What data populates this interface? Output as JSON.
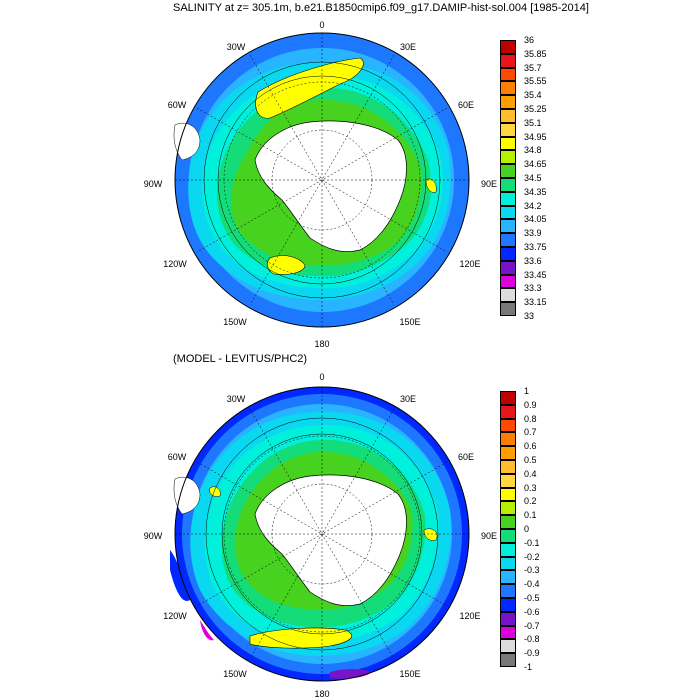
{
  "title": "SALINITY at z= 305.1m, b.e21.B1850cmip6.f09_g17.DAMIP-hist-sol.004 [1985-2014]",
  "subtitle": "(MODEL - LEVITUS/PHC2)",
  "map_labels": {
    "top": [
      "0",
      "30E",
      "60E",
      "90E",
      "120E",
      "150E",
      "180",
      "150W",
      "120W",
      "90W",
      "60W",
      "30W"
    ],
    "bottom": [
      "0",
      "30E",
      "60E",
      "90E",
      "120E",
      "150E",
      "180",
      "150W",
      "120W",
      "90W",
      "60W",
      "30W"
    ]
  },
  "colorbar_top": {
    "labels": [
      "36",
      "35.85",
      "35.7",
      "35.55",
      "35.4",
      "35.25",
      "35.1",
      "34.95",
      "34.8",
      "34.65",
      "34.5",
      "34.35",
      "34.2",
      "34.05",
      "33.9",
      "33.75",
      "33.6",
      "33.45",
      "33.3",
      "33.15",
      "33"
    ],
    "colors": [
      "#c00000",
      "#e8141c",
      "#ff4800",
      "#ff7d00",
      "#ff9e00",
      "#ffbc2c",
      "#ffd840",
      "#ffff00",
      "#b4f000",
      "#46d21e",
      "#14dc78",
      "#00f0dc",
      "#0ad8f0",
      "#28b4ff",
      "#1e78ff",
      "#0028ff",
      "#7814c8",
      "#dc00dc",
      "#dcdcdc",
      "#787878"
    ]
  },
  "colorbar_bottom": {
    "labels": [
      "1",
      "0.9",
      "0.8",
      "0.7",
      "0.6",
      "0.5",
      "0.4",
      "0.3",
      "0.2",
      "0.1",
      "0",
      "-0.1",
      "-0.2",
      "-0.3",
      "-0.4",
      "-0.5",
      "-0.6",
      "-0.7",
      "-0.8",
      "-0.9",
      "-1"
    ],
    "colors": [
      "#c00000",
      "#e8141c",
      "#ff4800",
      "#ff7d00",
      "#ff9e00",
      "#ffbc2c",
      "#ffd840",
      "#ffff00",
      "#b4f000",
      "#46d21e",
      "#14dc78",
      "#00f0dc",
      "#0ad8f0",
      "#28b4ff",
      "#1e78ff",
      "#0028ff",
      "#7814c8",
      "#dc00dc",
      "#dcdcdc",
      "#787878"
    ]
  }
}
